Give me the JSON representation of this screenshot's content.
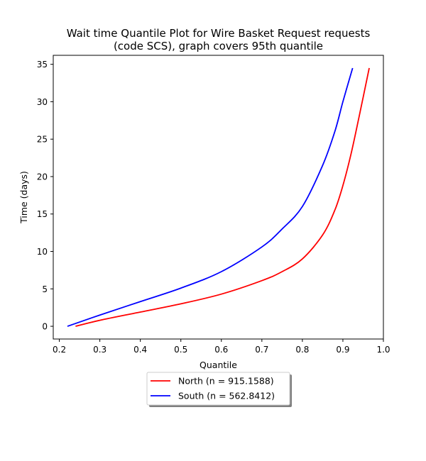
{
  "chart_data": {
    "type": "line",
    "title": [
      "Wait time Quantile Plot for Wire Basket Request  requests",
      "(code SCS), graph covers 95th quantile"
    ],
    "xlabel": "Quantile",
    "ylabel": "Time (days)",
    "xlim": [
      0.185,
      1.0
    ],
    "ylim": [
      -1.7,
      36.2
    ],
    "xticks": [
      0.2,
      0.3,
      0.4,
      0.5,
      0.6,
      0.7,
      0.8,
      0.9,
      1.0
    ],
    "xtick_labels": [
      "0.2",
      "0.3",
      "0.4",
      "0.5",
      "0.6",
      "0.7",
      "0.8",
      "0.9",
      "1.0"
    ],
    "yticks": [
      0,
      5,
      10,
      15,
      20,
      25,
      30,
      35
    ],
    "ytick_labels": [
      "0",
      "5",
      "10",
      "15",
      "20",
      "25",
      "30",
      "35"
    ],
    "grid": false,
    "legend_placement": "bottom-center",
    "series": [
      {
        "name": "North (n = 915.1588)",
        "color": "#ff0000",
        "x": [
          0.24,
          0.3,
          0.4,
          0.5,
          0.6,
          0.7,
          0.75,
          0.8,
          0.85,
          0.88,
          0.9,
          0.92,
          0.94,
          0.965
        ],
        "y": [
          0.0,
          0.8,
          1.9,
          3.0,
          4.3,
          6.1,
          7.3,
          9.0,
          12.2,
          15.5,
          18.8,
          23.0,
          28.0,
          34.5
        ]
      },
      {
        "name": "South (n = 562.8412)",
        "color": "#0000ff",
        "x": [
          0.22,
          0.3,
          0.4,
          0.5,
          0.6,
          0.7,
          0.75,
          0.8,
          0.85,
          0.88,
          0.9,
          0.924
        ],
        "y": [
          0.0,
          1.5,
          3.3,
          5.1,
          7.3,
          10.6,
          13.0,
          16.0,
          21.5,
          26.0,
          30.0,
          34.5
        ]
      }
    ]
  }
}
